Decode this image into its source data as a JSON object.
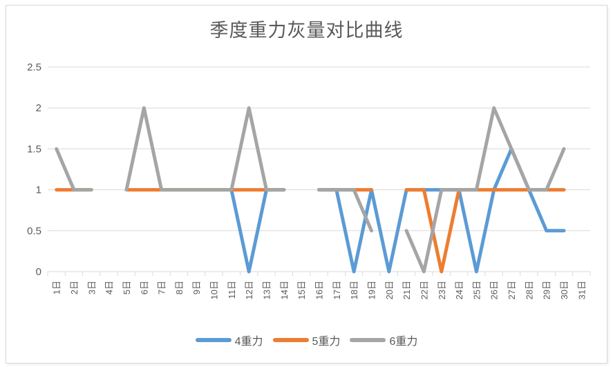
{
  "chart_data": {
    "type": "line",
    "title": "季度重力灰量对比曲线",
    "categories": [
      "1日",
      "2日",
      "3日",
      "4日",
      "5日",
      "6日",
      "7日",
      "8日",
      "9日",
      "10日",
      "11日",
      "12日",
      "13日",
      "14日",
      "15日",
      "16日",
      "17日",
      "18日",
      "19日",
      "20日",
      "21日",
      "22日",
      "23日",
      "24日",
      "25日",
      "26日",
      "27日",
      "28日",
      "29日",
      "30日",
      "31日"
    ],
    "series": [
      {
        "name": "4重力",
        "color": "#5B9BD5",
        "values": [
          null,
          null,
          null,
          null,
          null,
          null,
          null,
          null,
          null,
          null,
          1,
          0,
          1,
          1,
          null,
          1,
          1,
          0,
          1,
          0,
          1,
          1,
          1,
          1,
          0,
          1,
          1.5,
          1,
          0.5,
          0.5,
          null
        ]
      },
      {
        "name": "5重力",
        "color": "#ED7D31",
        "values": [
          1,
          1,
          1,
          null,
          1,
          1,
          1,
          1,
          1,
          1,
          1,
          1,
          1,
          1,
          null,
          1,
          1,
          1,
          1,
          null,
          1,
          1,
          0,
          1,
          1,
          1,
          1,
          1,
          1,
          1,
          null
        ]
      },
      {
        "name": "6重力",
        "color": "#A5A5A5",
        "values": [
          1.5,
          1,
          1,
          null,
          1,
          2,
          1,
          1,
          1,
          1,
          1,
          2,
          1,
          1,
          null,
          1,
          1,
          1,
          0.5,
          null,
          0.5,
          0,
          1,
          1,
          1,
          2,
          1.5,
          1,
          1,
          1.5,
          null
        ]
      }
    ],
    "xlabel": "",
    "ylabel": "",
    "ylim": [
      0,
      2.5
    ],
    "yticks": [
      0,
      0.5,
      1,
      1.5,
      2,
      2.5
    ],
    "ytick_labels": [
      "0",
      "0.5",
      "1",
      "1.5",
      "2",
      "2.5"
    ],
    "grid": "horizontal",
    "legend_position": "bottom"
  },
  "colors": {
    "text": "#595959",
    "gridline": "#D9D9D9",
    "border": "#D7D7D7",
    "background": "#FFFFFF"
  }
}
